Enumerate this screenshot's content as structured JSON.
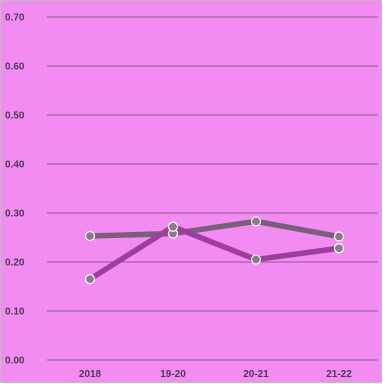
{
  "chart_data": {
    "type": "line",
    "categories": [
      "2018",
      "19-20",
      "20-21",
      "21-22"
    ],
    "ylim": [
      0,
      0.7
    ],
    "yticks": [
      "0.00",
      "0.10",
      "0.20",
      "0.30",
      "0.40",
      "0.50",
      "0.60",
      "0.70"
    ],
    "series": [
      {
        "values": [
          0.253,
          0.258,
          0.283,
          0.252
        ],
        "color": "#7a5f7a"
      },
      {
        "values": [
          0.165,
          0.272,
          0.205,
          0.228
        ],
        "color": "#9b3e9c"
      }
    ],
    "grid": true,
    "background_color": "#f38cf2",
    "grid_color": "#8e5b8e",
    "text_color": "#4b3a57",
    "marker_fill": "#8a7a8a",
    "marker_stroke": "#ffffff"
  }
}
